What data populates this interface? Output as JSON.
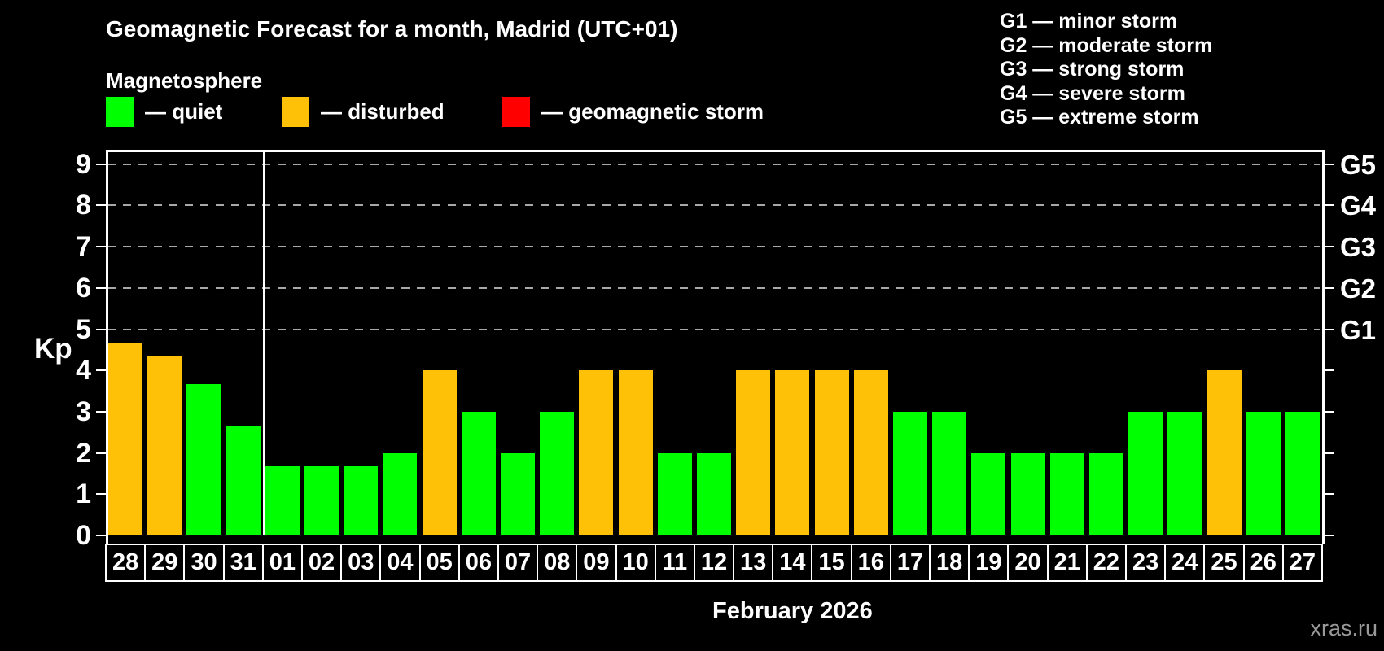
{
  "title": "Geomagnetic Forecast for a month, Madrid (UTC+01)",
  "subtitle": "Magnetosphere",
  "legend": {
    "items": [
      {
        "key": "quiet",
        "label": "— quiet"
      },
      {
        "key": "disturbed",
        "label": "— disturbed"
      },
      {
        "key": "storm",
        "label": "— geomagnetic storm"
      }
    ]
  },
  "g_scale_legend": [
    "G1 — minor storm",
    "G2 — moderate storm",
    "G3 — strong storm",
    "G4 — severe storm",
    "G5 — extreme storm"
  ],
  "axis": {
    "kp_label": "Kp"
  },
  "footer": {
    "month_label": "February 2026",
    "watermark": "xras.ru"
  },
  "colors": {
    "background": "#000000",
    "quiet": "#00ff00",
    "disturbed": "#ffc107",
    "storm": "#ff0000",
    "axis": "#ffffff",
    "grid": "#a8a8a8",
    "watermark": "#999999"
  },
  "chart_data": {
    "type": "bar",
    "title": "Geomagnetic Forecast for a month, Madrid (UTC+01)",
    "xlabel": "February 2026",
    "ylabel": "Kp",
    "ylim": [
      0,
      9.4
    ],
    "yticks": [
      0,
      1,
      2,
      3,
      4,
      5,
      6,
      7,
      8,
      9
    ],
    "grid": "dashed horizontal lines at Kp 5-9 only",
    "legend_position": "top",
    "right_axis_labels": [
      {
        "label": "G1",
        "kp": 5
      },
      {
        "label": "G2",
        "kp": 6
      },
      {
        "label": "G3",
        "kp": 7
      },
      {
        "label": "G4",
        "kp": 8
      },
      {
        "label": "G5",
        "kp": 9
      }
    ],
    "month_separator_after_index": 3,
    "categories": [
      "28",
      "29",
      "30",
      "31",
      "01",
      "02",
      "03",
      "04",
      "05",
      "06",
      "07",
      "08",
      "09",
      "10",
      "11",
      "12",
      "13",
      "14",
      "15",
      "16",
      "17",
      "18",
      "19",
      "20",
      "21",
      "22",
      "23",
      "24",
      "25",
      "26",
      "27"
    ],
    "values": [
      4.67,
      4.33,
      3.67,
      2.67,
      1.67,
      1.67,
      1.67,
      2,
      4,
      3,
      2,
      3,
      4,
      4,
      2,
      2,
      4,
      4,
      4,
      4,
      3,
      3,
      2,
      2,
      2,
      2,
      3,
      3,
      4,
      3,
      3
    ],
    "statuses": [
      "disturbed",
      "disturbed",
      "quiet",
      "quiet",
      "quiet",
      "quiet",
      "quiet",
      "quiet",
      "disturbed",
      "quiet",
      "quiet",
      "quiet",
      "disturbed",
      "disturbed",
      "quiet",
      "quiet",
      "disturbed",
      "disturbed",
      "disturbed",
      "disturbed",
      "quiet",
      "quiet",
      "quiet",
      "quiet",
      "quiet",
      "quiet",
      "quiet",
      "quiet",
      "disturbed",
      "quiet",
      "quiet"
    ]
  }
}
